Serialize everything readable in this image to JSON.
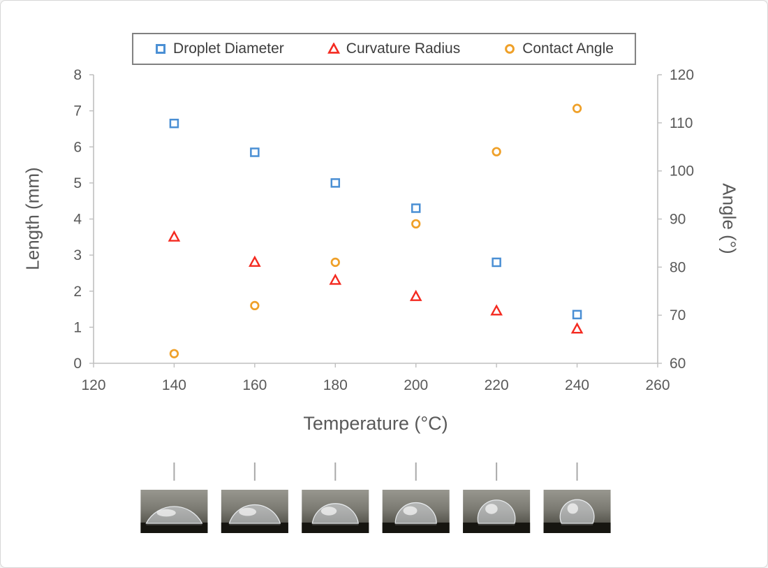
{
  "page": {
    "background": "#ffffff",
    "border_color": "#d6d6d6",
    "axis_line_color": "#bfbfbf",
    "tick_text_color": "#595959",
    "legend_border_color": "#808080"
  },
  "chart_data": {
    "type": "scatter",
    "title": "",
    "xlabel": "Temperature (°C)",
    "ylabel_left": "Length (mm)",
    "ylabel_right": "Angle (°)",
    "x_range": [
      120,
      260
    ],
    "y_left_range": [
      0,
      8
    ],
    "y_right_range": [
      60,
      120
    ],
    "x_ticks": [
      120,
      140,
      160,
      180,
      200,
      220,
      240,
      260
    ],
    "y_left_ticks": [
      0,
      1,
      2,
      3,
      4,
      5,
      6,
      7,
      8
    ],
    "y_right_ticks": [
      60,
      70,
      80,
      90,
      100,
      110,
      120
    ],
    "grid": false,
    "legend_position": "top",
    "x": [
      140,
      160,
      180,
      200,
      220,
      240
    ],
    "series": [
      {
        "name": "Droplet Diameter",
        "axis": "left",
        "marker": "square",
        "color": "#4a8fd4",
        "values": [
          6.65,
          5.85,
          5.0,
          4.3,
          2.8,
          1.35
        ]
      },
      {
        "name": "Curvature Radius",
        "axis": "left",
        "marker": "triangle",
        "color": "#f42a20",
        "values": [
          3.5,
          2.8,
          2.3,
          1.85,
          1.45,
          0.95
        ]
      },
      {
        "name": "Contact Angle",
        "axis": "right",
        "marker": "circle",
        "color": "#efa028",
        "values": [
          62,
          72,
          81,
          89,
          104,
          113
        ]
      }
    ]
  },
  "photos": {
    "count": 6
  }
}
